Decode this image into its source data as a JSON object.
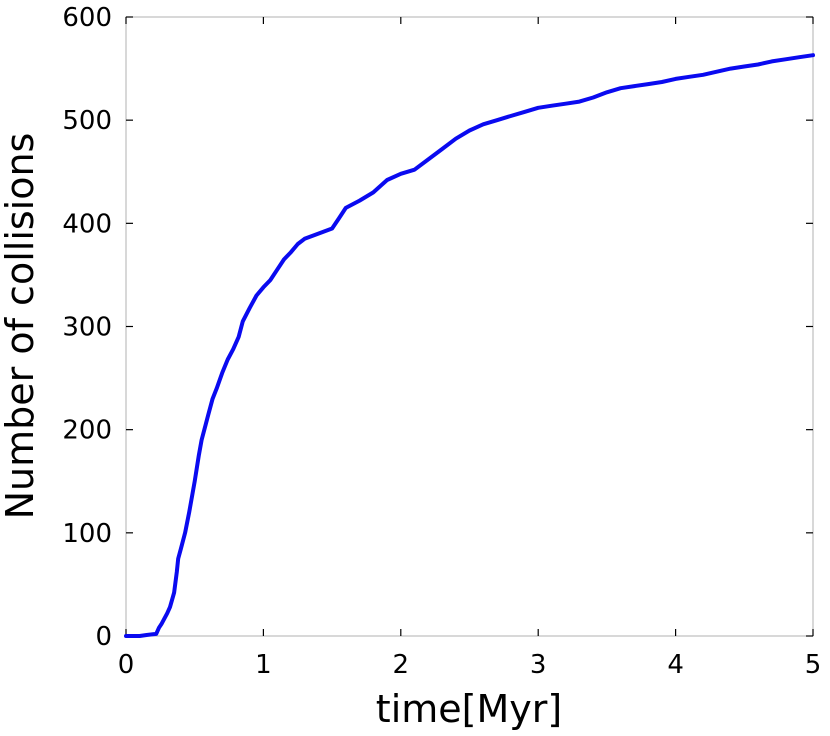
{
  "chart_data": {
    "type": "line",
    "title": "",
    "xlabel": "time[Myr]",
    "ylabel": "Number of collisions",
    "xlim": [
      0,
      5
    ],
    "ylim": [
      0,
      600
    ],
    "xticks": [
      0,
      1,
      2,
      3,
      4,
      5
    ],
    "yticks": [
      0,
      100,
      200,
      300,
      400,
      500,
      600
    ],
    "grid": false,
    "legend": "none",
    "series": [
      {
        "color": "#0a0af0",
        "x": [
          0,
          0.1,
          0.15,
          0.22,
          0.24,
          0.26,
          0.3,
          0.32,
          0.35,
          0.37,
          0.38,
          0.4,
          0.43,
          0.46,
          0.5,
          0.53,
          0.55,
          0.58,
          0.6,
          0.63,
          0.66,
          0.7,
          0.74,
          0.78,
          0.82,
          0.85,
          0.9,
          0.95,
          1.0,
          1.05,
          1.1,
          1.15,
          1.2,
          1.25,
          1.3,
          1.4,
          1.5,
          1.55,
          1.6,
          1.7,
          1.8,
          1.9,
          2.0,
          2.1,
          2.2,
          2.3,
          2.4,
          2.5,
          2.6,
          2.7,
          2.8,
          2.9,
          3.0,
          3.1,
          3.2,
          3.3,
          3.4,
          3.5,
          3.6,
          3.7,
          3.8,
          3.9,
          4.0,
          4.1,
          4.2,
          4.3,
          4.4,
          4.5,
          4.6,
          4.7,
          4.8,
          4.9,
          5.0
        ],
        "y": [
          0,
          0,
          1,
          2,
          8,
          12,
          22,
          28,
          42,
          62,
          75,
          85,
          100,
          120,
          150,
          175,
          190,
          205,
          215,
          230,
          240,
          255,
          268,
          278,
          290,
          305,
          318,
          330,
          338,
          345,
          355,
          365,
          372,
          380,
          385,
          390,
          395,
          405,
          415,
          422,
          430,
          442,
          448,
          452,
          462,
          472,
          482,
          490,
          496,
          500,
          504,
          508,
          512,
          514,
          516,
          518,
          522,
          527,
          531,
          533,
          535,
          537,
          540,
          542,
          544,
          547,
          550,
          552,
          554,
          557,
          559,
          561,
          563
        ]
      }
    ]
  }
}
